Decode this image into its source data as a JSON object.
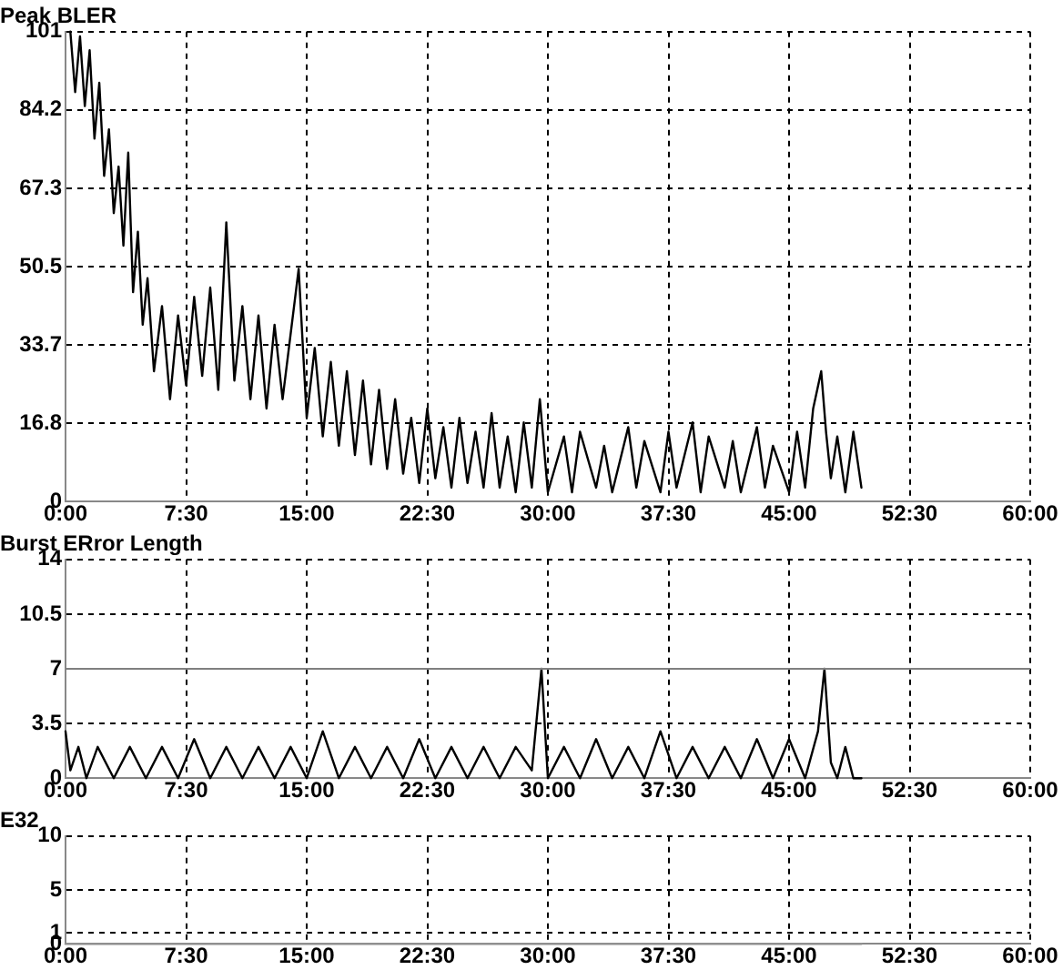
{
  "chart_data": [
    {
      "type": "line",
      "title": "Peak BLER",
      "xlim": [
        0,
        60
      ],
      "xticks": [
        {
          "value": 0,
          "label": "0:00"
        },
        {
          "value": 7.5,
          "label": "7:30"
        },
        {
          "value": 15,
          "label": "15:00"
        },
        {
          "value": 22.5,
          "label": "22:30"
        },
        {
          "value": 30,
          "label": "30:00"
        },
        {
          "value": 37.5,
          "label": "37:30"
        },
        {
          "value": 45,
          "label": "45:00"
        },
        {
          "value": 52.5,
          "label": "52:30"
        },
        {
          "value": 60,
          "label": "60:00"
        }
      ],
      "ylim": [
        0,
        101
      ],
      "yticks": [
        0,
        16.8,
        33.7,
        50.5,
        67.3,
        84.2,
        101
      ],
      "grid": true,
      "marker": "none",
      "line_style": "solid",
      "series": [
        {
          "color": "#000000",
          "x": [
            0.3,
            0.6,
            0.9,
            1.2,
            1.5,
            1.8,
            2.1,
            2.4,
            2.7,
            3.0,
            3.3,
            3.6,
            3.9,
            4.2,
            4.5,
            4.8,
            5.1,
            5.5,
            6.0,
            6.5,
            7.0,
            7.5,
            8.0,
            8.5,
            9.0,
            9.5,
            10.0,
            10.5,
            11.0,
            11.5,
            12.0,
            12.5,
            13.0,
            13.5,
            14.5,
            15.0,
            15.5,
            16.0,
            16.5,
            17.0,
            17.5,
            18.0,
            18.5,
            19.0,
            19.5,
            20.0,
            20.5,
            21.0,
            21.5,
            22.0,
            22.5,
            23.0,
            23.5,
            24,
            24.5,
            25,
            25.5,
            26,
            26.5,
            27,
            27.5,
            28,
            28.5,
            29,
            29.5,
            30,
            31,
            31.5,
            32,
            33,
            33.5,
            34,
            35,
            35.5,
            36,
            37,
            37.5,
            38,
            39,
            39.5,
            40,
            41,
            41.5,
            42,
            43,
            43.5,
            44,
            45,
            45.5,
            46,
            46.5,
            47,
            47.3,
            47.6,
            48,
            48.5,
            49,
            49.5
          ],
          "values": [
            101,
            88,
            100,
            85,
            97,
            78,
            90,
            70,
            80,
            62,
            72,
            55,
            75,
            45,
            58,
            38,
            48,
            28,
            42,
            22,
            40,
            25,
            44,
            27,
            46,
            24,
            60,
            26,
            42,
            22,
            40,
            20,
            38,
            22,
            50,
            18,
            33,
            14,
            30,
            12,
            28,
            10,
            26,
            8,
            24,
            7,
            22,
            6,
            18,
            4,
            20,
            5,
            16,
            3,
            18,
            4,
            15,
            3,
            19,
            3,
            14,
            2,
            17,
            3,
            22,
            2,
            14,
            2,
            15,
            3,
            12,
            2,
            16,
            3,
            13,
            2,
            15,
            3,
            17,
            2,
            14,
            3,
            13,
            2,
            16,
            3,
            12,
            2,
            15,
            3,
            20,
            28,
            15,
            5,
            14,
            2,
            15,
            3
          ]
        }
      ]
    },
    {
      "type": "line",
      "title": "Burst ERror Length",
      "xlim": [
        0,
        60
      ],
      "xticks": [
        {
          "value": 0,
          "label": "0:00"
        },
        {
          "value": 7.5,
          "label": "7:30"
        },
        {
          "value": 15,
          "label": "15:00"
        },
        {
          "value": 22.5,
          "label": "22:30"
        },
        {
          "value": 30,
          "label": "30:00"
        },
        {
          "value": 37.5,
          "label": "37:30"
        },
        {
          "value": 45,
          "label": "45:00"
        },
        {
          "value": 52.5,
          "label": "52:30"
        },
        {
          "value": 60,
          "label": "60:00"
        }
      ],
      "ylim": [
        0,
        14
      ],
      "yticks": [
        0,
        3.5,
        7,
        10.5,
        14
      ],
      "grid": true,
      "marker": "none",
      "line_style": "solid",
      "ref_lines": [
        {
          "axis": "y",
          "value": 7,
          "color": "#808080"
        }
      ],
      "series": [
        {
          "color": "#000000",
          "x": [
            0,
            0.3,
            0.8,
            1.3,
            2,
            3,
            4,
            5,
            6,
            7,
            8,
            9,
            10,
            11,
            12,
            13,
            14,
            15,
            16,
            17,
            18,
            19,
            20,
            21,
            22,
            23,
            24,
            25,
            26,
            27,
            28,
            29,
            29.6,
            30,
            31,
            32,
            33,
            34,
            35,
            36,
            37,
            38,
            39,
            40,
            41,
            42,
            43,
            44,
            45,
            46,
            46.8,
            47.2,
            47.6,
            48,
            48.5,
            49,
            49.5
          ],
          "values": [
            3,
            0.5,
            2,
            0,
            2,
            0,
            2,
            0,
            2,
            0,
            2.5,
            0,
            2,
            0,
            2,
            0,
            2,
            0,
            3,
            0,
            2,
            0,
            2,
            0,
            2.5,
            0,
            2,
            0,
            2,
            0,
            2,
            0.5,
            7,
            0,
            2,
            0,
            2.5,
            0,
            2,
            0,
            3,
            0,
            2,
            0,
            2,
            0,
            2.5,
            0,
            2.5,
            0,
            3,
            7,
            1,
            0,
            2,
            0,
            0
          ]
        }
      ]
    },
    {
      "type": "line",
      "title": "E32",
      "xlim": [
        0,
        60
      ],
      "xticks": [
        {
          "value": 0,
          "label": "0:00"
        },
        {
          "value": 7.5,
          "label": "7:30"
        },
        {
          "value": 15,
          "label": "15:00"
        },
        {
          "value": 22.5,
          "label": "22:30"
        },
        {
          "value": 30,
          "label": "30:00"
        },
        {
          "value": 37.5,
          "label": "37:30"
        },
        {
          "value": 45,
          "label": "45:00"
        },
        {
          "value": 52.5,
          "label": "52:30"
        },
        {
          "value": 60,
          "label": "60:00"
        }
      ],
      "ylim": [
        0,
        10
      ],
      "yticks": [
        0,
        1,
        5,
        10
      ],
      "grid": true,
      "marker": "none",
      "line_style": "solid",
      "series": [
        {
          "color": "#909090",
          "x": [
            0,
            49.5
          ],
          "values": [
            0,
            0
          ]
        }
      ]
    }
  ]
}
